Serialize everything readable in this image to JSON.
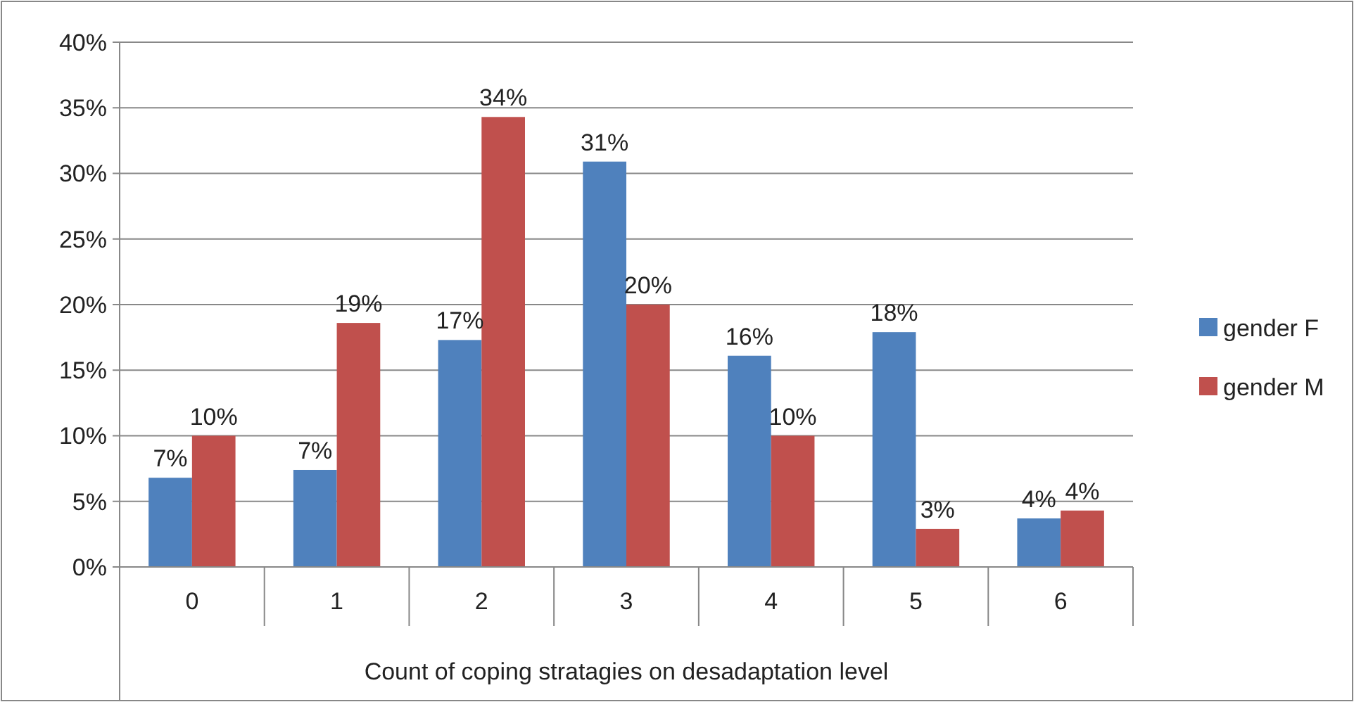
{
  "chart_data": {
    "type": "bar",
    "xlabel": "Count of coping stratagies on desadaptation level",
    "categories": [
      "0",
      "1",
      "2",
      "3",
      "4",
      "5",
      "6"
    ],
    "series": [
      {
        "name": "gender F",
        "color": "#4f81bd",
        "values": [
          6.8,
          7.4,
          17.3,
          30.9,
          16.1,
          17.9,
          3.7
        ],
        "value_labels": [
          "7%",
          "7%",
          "17%",
          "31%",
          "16%",
          "18%",
          "4%"
        ]
      },
      {
        "name": "gender M",
        "color": "#c0504d",
        "values": [
          10.0,
          18.6,
          34.3,
          20.0,
          10.0,
          2.9,
          4.3
        ],
        "value_labels": [
          "10%",
          "19%",
          "34%",
          "20%",
          "10%",
          "3%",
          "4%"
        ]
      }
    ],
    "ylim": [
      0,
      40
    ],
    "yticks": [
      {
        "value": 0,
        "label": "0%"
      },
      {
        "value": 5,
        "label": "5%"
      },
      {
        "value": 10,
        "label": "10%"
      },
      {
        "value": 15,
        "label": "15%"
      },
      {
        "value": 20,
        "label": "20%"
      },
      {
        "value": 25,
        "label": "25%"
      },
      {
        "value": 30,
        "label": "30%"
      },
      {
        "value": 35,
        "label": "35%"
      },
      {
        "value": 40,
        "label": "40%"
      }
    ],
    "grid": "y",
    "legend": "right"
  }
}
